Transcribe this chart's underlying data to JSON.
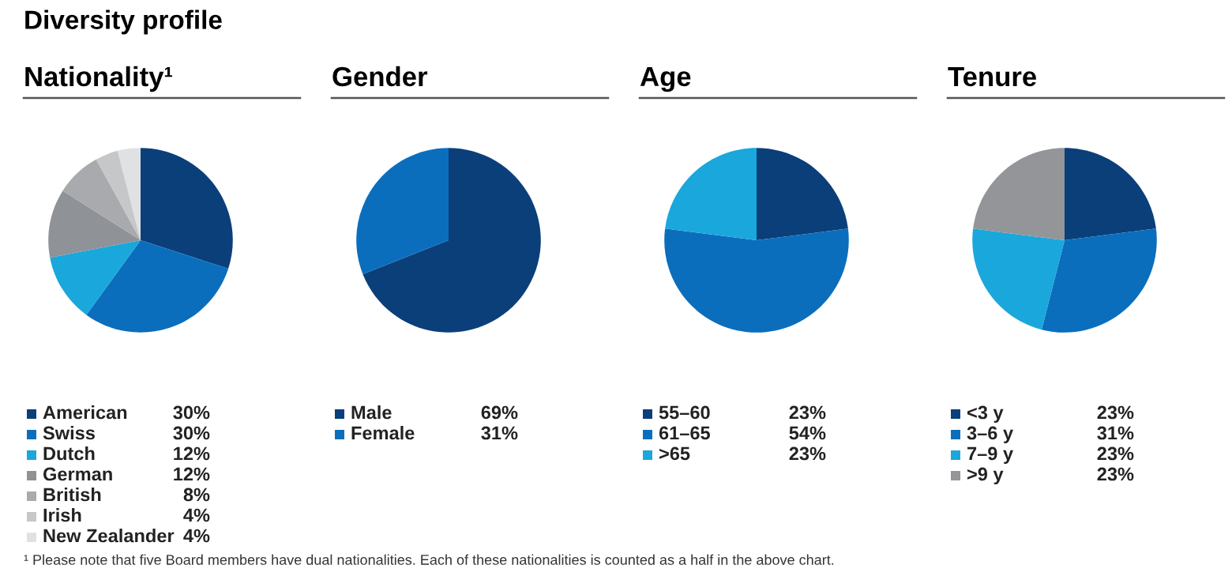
{
  "chart_data": [
    {
      "type": "pie",
      "title": "Nationality¹",
      "categories": [
        "American",
        "Swiss",
        "Dutch",
        "German",
        "British",
        "Irish",
        "New Zealander"
      ],
      "values": [
        30,
        30,
        12,
        12,
        8,
        4,
        4
      ],
      "colors": [
        "#0b3f7a",
        "#0a6ebd",
        "#1aa7dc",
        "#8f9296",
        "#a8aaad",
        "#c6c7c9",
        "#e0e1e3"
      ],
      "value_labels": [
        "30%",
        "30%",
        "12%",
        "12%",
        "8%",
        "4%",
        "4%"
      ],
      "legend": "bottom",
      "annotations": [
        "Diversity profile",
        "¹ Please note that five Board members have dual nationalities. Each of these nationalities is counted as a half in the above chart."
      ]
    },
    {
      "type": "pie",
      "title": "Gender",
      "categories": [
        "Male",
        "Female"
      ],
      "values": [
        69,
        31
      ],
      "colors": [
        "#0b3f7a",
        "#0a6ebd"
      ],
      "value_labels": [
        "69%",
        "31%"
      ],
      "legend": "bottom"
    },
    {
      "type": "pie",
      "title": "Age",
      "categories": [
        "55–60",
        "61–65",
        ">65"
      ],
      "values": [
        23,
        54,
        23
      ],
      "colors": [
        "#0b3f7a",
        "#0a6ebd",
        "#1aa7dc"
      ],
      "value_labels": [
        "23%",
        "54%",
        "23%"
      ],
      "legend": "bottom"
    },
    {
      "type": "pie",
      "title": "Tenure",
      "categories": [
        "<3 y",
        "3–6 y",
        "7–9 y",
        ">9 y"
      ],
      "values": [
        23,
        31,
        23,
        23
      ],
      "colors": [
        "#0b3f7a",
        "#0a6ebd",
        "#1aa7dc",
        "#939598"
      ],
      "value_labels": [
        "23%",
        "31%",
        "23%",
        "23%"
      ],
      "legend": "bottom"
    }
  ]
}
